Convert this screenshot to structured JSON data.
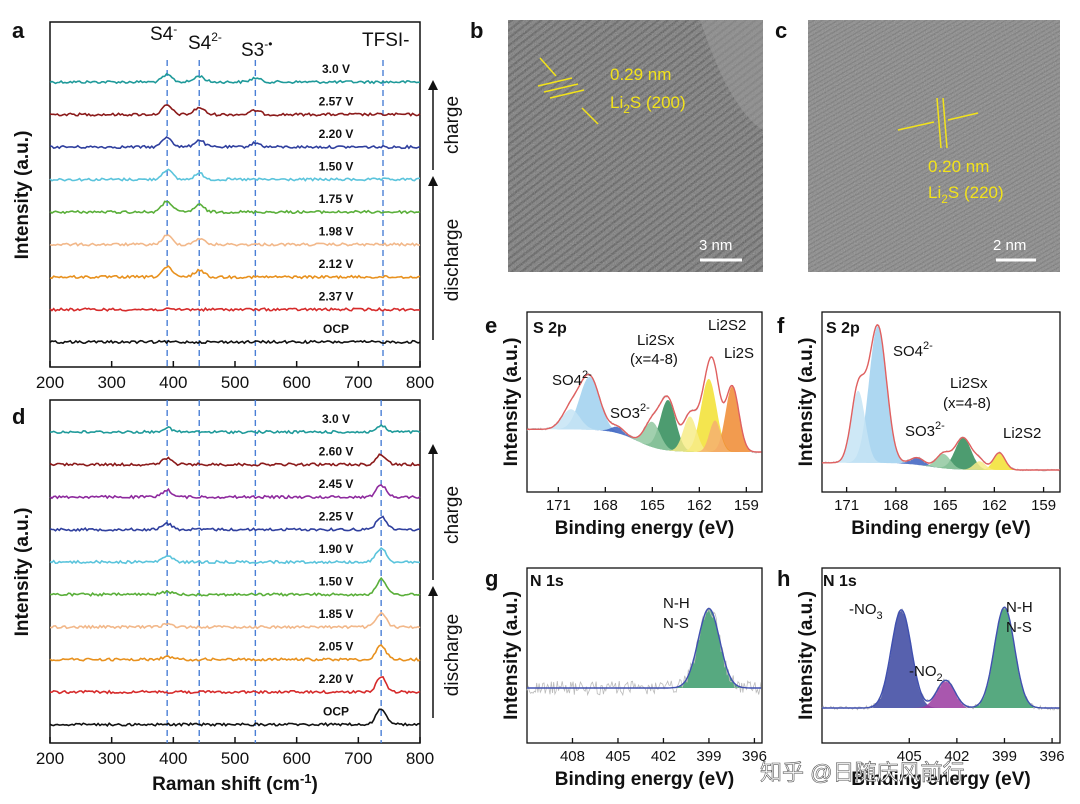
{
  "chart_data": [
    {
      "panel": "a",
      "type": "line",
      "title": "",
      "xlabel": "",
      "ylabel": "Intensity (a.u.)",
      "xlim": [
        200,
        800
      ],
      "xticks": [
        "200",
        "300",
        "400",
        "500",
        "600",
        "700",
        "800"
      ],
      "peak_markers": [
        {
          "label": "S4-",
          "x": 390
        },
        {
          "label": "S42-",
          "x": 442
        },
        {
          "label": "S3-•",
          "x": 533
        },
        {
          "label": "TFSI-",
          "x": 740
        }
      ],
      "marker_labels": {
        "s4": "S4",
        "s4_sup": "-",
        "s42": "S4",
        "s42_sup": "2-",
        "s3": "S3",
        "s3_sup": "-•",
        "tfsi": "TFSI-"
      },
      "directions": {
        "charge": "charge",
        "discharge": "discharge"
      },
      "series": [
        {
          "name": "3.0 V",
          "color": "#1f9a9a",
          "peaks": [
            [
              390,
              7
            ],
            [
              442,
              6
            ],
            [
              533,
              4
            ]
          ]
        },
        {
          "name": "2.57 V",
          "color": "#8b1a1a",
          "peaks": [
            [
              390,
              9
            ],
            [
              442,
              7
            ],
            [
              533,
              4
            ]
          ]
        },
        {
          "name": "2.20 V",
          "color": "#2f3f9e",
          "peaks": [
            [
              390,
              10
            ],
            [
              442,
              7
            ],
            [
              533,
              4
            ]
          ]
        },
        {
          "name": "1.50 V",
          "color": "#5bc4dc",
          "peaks": [
            [
              390,
              10
            ],
            [
              442,
              6
            ]
          ]
        },
        {
          "name": "1.75 V",
          "color": "#5aaf3a",
          "peaks": [
            [
              390,
              11
            ],
            [
              442,
              7
            ]
          ]
        },
        {
          "name": "1.98 V",
          "color": "#f2b88a",
          "peaks": [
            [
              390,
              9
            ],
            [
              442,
              6
            ]
          ]
        },
        {
          "name": "2.12 V",
          "color": "#e8911e",
          "peaks": [
            [
              390,
              10
            ],
            [
              442,
              7
            ]
          ]
        },
        {
          "name": "2.37 V",
          "color": "#d62b2b",
          "peaks": []
        },
        {
          "name": "OCP",
          "color": "#111111",
          "peaks": []
        }
      ]
    },
    {
      "panel": "d",
      "type": "line",
      "title": "",
      "xlabel": "Raman shift (cm-1)",
      "xlabel_main": "Raman shift (cm",
      "xlabel_sup": "-1",
      "xlabel_close": ")",
      "ylabel": "Intensity (a.u.)",
      "xlim": [
        200,
        800
      ],
      "xticks": [
        "200",
        "300",
        "400",
        "500",
        "600",
        "700",
        "800"
      ],
      "peak_markers": [
        {
          "x": 390
        },
        {
          "x": 442
        },
        {
          "x": 533
        },
        {
          "x": 737
        }
      ],
      "directions": {
        "charge": "charge",
        "discharge": "discharge"
      },
      "series": [
        {
          "name": "3.0 V",
          "color": "#1f9a9a",
          "peaks": [
            [
              390,
              4
            ],
            [
              737,
              6
            ]
          ]
        },
        {
          "name": "2.60 V",
          "color": "#8b1a1a",
          "peaks": [
            [
              390,
              6
            ],
            [
              737,
              10
            ]
          ]
        },
        {
          "name": "2.45 V",
          "color": "#8e2a9e",
          "peaks": [
            [
              390,
              7
            ],
            [
              737,
              12
            ]
          ]
        },
        {
          "name": "2.25 V",
          "color": "#2f3f9e",
          "peaks": [
            [
              390,
              6
            ],
            [
              737,
              13
            ]
          ]
        },
        {
          "name": "1.90 V",
          "color": "#5bc4dc",
          "peaks": [
            [
              390,
              6
            ],
            [
              737,
              14
            ]
          ]
        },
        {
          "name": "1.50 V",
          "color": "#5aaf3a",
          "peaks": [
            [
              390,
              3
            ],
            [
              737,
              15
            ]
          ]
        },
        {
          "name": "1.85 V",
          "color": "#f2b88a",
          "peaks": [
            [
              390,
              3
            ],
            [
              737,
              14
            ]
          ]
        },
        {
          "name": "2.05 V",
          "color": "#e8911e",
          "peaks": [
            [
              390,
              3
            ],
            [
              737,
              14
            ]
          ]
        },
        {
          "name": "2.20 V",
          "color": "#d62b2b",
          "peaks": [
            [
              737,
              15
            ]
          ]
        },
        {
          "name": "OCP",
          "color": "#111111",
          "peaks": [
            [
              737,
              16
            ]
          ]
        }
      ]
    },
    {
      "panel": "e",
      "type": "area",
      "title": "S 2p",
      "xlabel": "Binding energy (eV)",
      "ylabel": "Intensity (a.u.)",
      "xlim": [
        173,
        158
      ],
      "xticks": [
        "171",
        "168",
        "165",
        "162",
        "159"
      ],
      "envelope_color": "#e06060",
      "components": [
        {
          "name": "SO4 2-",
          "center": 169.0,
          "width": 0.9,
          "height": 0.42,
          "color": "#9fd0ee"
        },
        {
          "name": "SO4 2- b",
          "center": 170.2,
          "width": 0.8,
          "height": 0.16,
          "color": "#c6e4f5"
        },
        {
          "name": "SO3 2-",
          "center": 167.2,
          "width": 0.6,
          "height": 0.05,
          "color": "#3b5fc0"
        },
        {
          "name": "Li2Sx a",
          "center": 164.0,
          "width": 0.7,
          "height": 0.4,
          "color": "#2e8b57"
        },
        {
          "name": "Li2Sx b",
          "center": 165.0,
          "width": 0.7,
          "height": 0.2,
          "color": "#90c8a0"
        },
        {
          "name": "Li2S2 a",
          "center": 161.4,
          "width": 0.7,
          "height": 0.58,
          "color": "#f2e030"
        },
        {
          "name": "Li2S2 b",
          "center": 162.6,
          "width": 0.6,
          "height": 0.28,
          "color": "#f7ec88"
        },
        {
          "name": "Li2S a",
          "center": 159.9,
          "width": 0.6,
          "height": 0.52,
          "color": "#f08a30"
        },
        {
          "name": "Li2S b",
          "center": 161.0,
          "width": 0.5,
          "height": 0.25,
          "color": "#f5b070"
        }
      ],
      "annotations": {
        "so4": "SO4",
        "so4_sup": "2-",
        "so3": "SO3",
        "so3_sup": "2-",
        "li2sx": "Li2Sx",
        "li2sx_range": "(x=4-8)",
        "li2s2": "Li2S2",
        "li2s": "Li2S"
      }
    },
    {
      "panel": "f",
      "type": "area",
      "title": "S 2p",
      "xlabel": "Binding energy (eV)",
      "ylabel": "Intensity (a.u.)",
      "xlim": [
        172.5,
        158
      ],
      "xticks": [
        "171",
        "168",
        "165",
        "162",
        "159"
      ],
      "envelope_color": "#e06060",
      "components": [
        {
          "name": "SO4 2-",
          "center": 169.1,
          "width": 0.75,
          "height": 0.95,
          "color": "#9fd0ee"
        },
        {
          "name": "SO4 2- b",
          "center": 170.3,
          "width": 0.6,
          "height": 0.5,
          "color": "#c6e4f5"
        },
        {
          "name": "SO3 2-",
          "center": 166.7,
          "width": 0.6,
          "height": 0.05,
          "color": "#3b5fc0"
        },
        {
          "name": "Li2Sx a",
          "center": 163.9,
          "width": 0.7,
          "height": 0.22,
          "color": "#2e8b57"
        },
        {
          "name": "Li2Sx b",
          "center": 165.1,
          "width": 0.6,
          "height": 0.1,
          "color": "#90c8a0"
        },
        {
          "name": "Li2S2 a",
          "center": 161.7,
          "width": 0.5,
          "height": 0.12,
          "color": "#f2e030"
        },
        {
          "name": "Li2S2 b",
          "center": 162.9,
          "width": 0.5,
          "height": 0.06,
          "color": "#f7ec88"
        }
      ],
      "annotations": {
        "so4": "SO4",
        "so4_sup": "2-",
        "so3": "SO3",
        "so3_sup": "2-",
        "li2sx": "Li2Sx",
        "li2sx_range": "(x=4-8)",
        "li2s2": "Li2S2"
      }
    },
    {
      "panel": "g",
      "type": "area",
      "title": "N 1s",
      "xlabel": "Binding energy (eV)",
      "ylabel": "Intensity (a.u.)",
      "xlim": [
        411,
        395.5
      ],
      "xticks": [
        "408",
        "405",
        "402",
        "399",
        "396"
      ],
      "envelope_color": "#4050b0",
      "components": [
        {
          "name": "N-H / N-S",
          "center": 399.0,
          "width": 1.0,
          "height": 0.75,
          "color": "#3a9a6a"
        }
      ],
      "annotations": {
        "nh": "N-H",
        "ns": "N-S"
      }
    },
    {
      "panel": "h",
      "type": "area",
      "title": "N 1s",
      "xlabel": "Binding energy (eV)",
      "ylabel": "Intensity (a.u.)",
      "xlim": [
        410.5,
        395.5
      ],
      "xticks": [
        "405",
        "402",
        "399",
        "396"
      ],
      "envelope_color": "#4050b0",
      "components": [
        {
          "name": "-NO3",
          "center": 405.5,
          "width": 0.9,
          "height": 0.78,
          "color": "#3a45a0"
        },
        {
          "name": "-NO2",
          "center": 402.7,
          "width": 0.8,
          "height": 0.22,
          "color": "#9a3aa0"
        },
        {
          "name": "N-H / N-S",
          "center": 399.0,
          "width": 0.9,
          "height": 0.8,
          "color": "#3a9a6a"
        }
      ],
      "annotations": {
        "no3": "-NO",
        "no3_sub": "3",
        "no2": "-NO",
        "no2_sub": "2",
        "nh": "N-H",
        "ns": "N-S"
      }
    }
  ],
  "panels": {
    "a": "a",
    "b": "b",
    "c": "c",
    "d": "d",
    "e": "e",
    "f": "f",
    "g": "g",
    "h": "h"
  },
  "tem": {
    "b": {
      "spacing": "0.29 nm",
      "phase": "Li",
      "phase_sub": "2",
      "phase_rest": "S (200)",
      "scale": "3 nm"
    },
    "c": {
      "spacing": "0.20 nm",
      "phase": "Li",
      "phase_sub": "2",
      "phase_rest": "S (220)",
      "scale": "2 nm"
    }
  },
  "watermark": "知乎 @日随庆风前行",
  "colors": {
    "dash_marker": "#4a7fd6",
    "tem_annotation": "#f2e21a"
  }
}
